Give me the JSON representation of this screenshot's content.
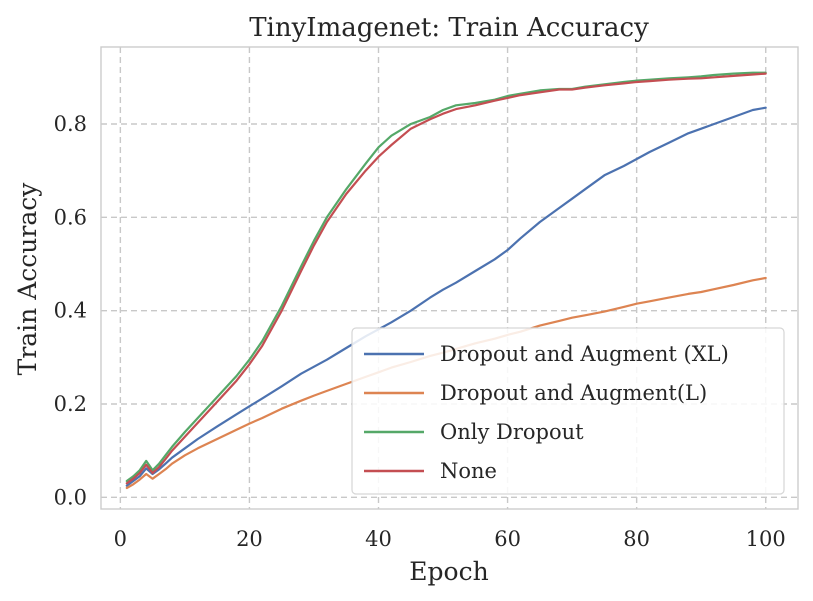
{
  "chart_data": {
    "type": "line",
    "title": "TinyImagenet: Train Accuracy",
    "xlabel": "Epoch",
    "ylabel": "Train Accuracy",
    "xlim": [
      -3,
      105
    ],
    "ylim": [
      -0.025,
      0.965
    ],
    "xticks": [
      0,
      20,
      40,
      60,
      80,
      100
    ],
    "xtick_labels": [
      "0",
      "20",
      "40",
      "60",
      "80",
      "100"
    ],
    "yticks": [
      0.0,
      0.2,
      0.4,
      0.6,
      0.8
    ],
    "ytick_labels": [
      "0.0",
      "0.2",
      "0.4",
      "0.6",
      "0.8"
    ],
    "grid": true,
    "legend_position": "lower-right",
    "series": [
      {
        "name": "Dropout and Augment (XL)",
        "color": "#4c72b0",
        "x": [
          1,
          2,
          3,
          4,
          5,
          6,
          7,
          8,
          10,
          12,
          15,
          18,
          20,
          22,
          25,
          28,
          30,
          32,
          35,
          38,
          40,
          42,
          45,
          48,
          50,
          52,
          55,
          58,
          60,
          62,
          65,
          68,
          70,
          72,
          75,
          78,
          80,
          82,
          85,
          88,
          90,
          92,
          95,
          98,
          100
        ],
        "y": [
          0.025,
          0.035,
          0.045,
          0.062,
          0.05,
          0.06,
          0.072,
          0.085,
          0.105,
          0.125,
          0.152,
          0.178,
          0.195,
          0.212,
          0.238,
          0.265,
          0.28,
          0.295,
          0.32,
          0.345,
          0.36,
          0.375,
          0.4,
          0.428,
          0.445,
          0.46,
          0.485,
          0.51,
          0.53,
          0.555,
          0.59,
          0.62,
          0.64,
          0.66,
          0.69,
          0.71,
          0.725,
          0.74,
          0.76,
          0.78,
          0.79,
          0.8,
          0.815,
          0.83,
          0.835
        ]
      },
      {
        "name": "Dropout and Augment(L)",
        "color": "#dd8452",
        "x": [
          1,
          2,
          3,
          4,
          5,
          6,
          7,
          8,
          10,
          12,
          15,
          18,
          20,
          22,
          25,
          28,
          30,
          32,
          35,
          38,
          40,
          42,
          45,
          48,
          50,
          52,
          55,
          58,
          60,
          62,
          65,
          68,
          70,
          72,
          75,
          78,
          80,
          82,
          85,
          88,
          90,
          92,
          95,
          98,
          100
        ],
        "y": [
          0.02,
          0.028,
          0.038,
          0.05,
          0.04,
          0.05,
          0.06,
          0.072,
          0.09,
          0.105,
          0.125,
          0.145,
          0.158,
          0.17,
          0.19,
          0.207,
          0.218,
          0.228,
          0.243,
          0.258,
          0.268,
          0.278,
          0.29,
          0.303,
          0.31,
          0.318,
          0.33,
          0.34,
          0.348,
          0.355,
          0.368,
          0.378,
          0.385,
          0.39,
          0.398,
          0.408,
          0.415,
          0.42,
          0.428,
          0.436,
          0.44,
          0.446,
          0.455,
          0.465,
          0.47
        ]
      },
      {
        "name": "Only Dropout",
        "color": "#55a868",
        "x": [
          1,
          2,
          3,
          4,
          5,
          6,
          7,
          8,
          10,
          12,
          15,
          18,
          20,
          22,
          25,
          28,
          30,
          32,
          35,
          38,
          40,
          42,
          45,
          48,
          50,
          52,
          55,
          58,
          60,
          62,
          65,
          68,
          70,
          72,
          75,
          78,
          80,
          82,
          85,
          88,
          90,
          92,
          95,
          98,
          100
        ],
        "y": [
          0.035,
          0.045,
          0.058,
          0.078,
          0.058,
          0.072,
          0.09,
          0.108,
          0.14,
          0.17,
          0.215,
          0.26,
          0.295,
          0.335,
          0.41,
          0.495,
          0.55,
          0.6,
          0.66,
          0.715,
          0.75,
          0.775,
          0.8,
          0.815,
          0.83,
          0.84,
          0.845,
          0.852,
          0.86,
          0.865,
          0.872,
          0.875,
          0.875,
          0.88,
          0.885,
          0.89,
          0.893,
          0.895,
          0.898,
          0.9,
          0.902,
          0.905,
          0.908,
          0.91,
          0.91
        ]
      },
      {
        "name": "None",
        "color": "#c44e52",
        "x": [
          1,
          2,
          3,
          4,
          5,
          6,
          7,
          8,
          10,
          12,
          15,
          18,
          20,
          22,
          25,
          28,
          30,
          32,
          35,
          38,
          40,
          42,
          45,
          48,
          50,
          52,
          55,
          58,
          60,
          62,
          65,
          68,
          70,
          72,
          75,
          78,
          80,
          82,
          85,
          88,
          90,
          92,
          95,
          98,
          100
        ],
        "y": [
          0.03,
          0.04,
          0.052,
          0.07,
          0.052,
          0.065,
          0.082,
          0.1,
          0.13,
          0.16,
          0.205,
          0.25,
          0.285,
          0.325,
          0.4,
          0.485,
          0.54,
          0.59,
          0.65,
          0.7,
          0.73,
          0.755,
          0.79,
          0.81,
          0.822,
          0.832,
          0.84,
          0.85,
          0.856,
          0.862,
          0.868,
          0.874,
          0.874,
          0.878,
          0.883,
          0.887,
          0.89,
          0.892,
          0.895,
          0.897,
          0.898,
          0.9,
          0.903,
          0.906,
          0.908
        ]
      }
    ]
  }
}
